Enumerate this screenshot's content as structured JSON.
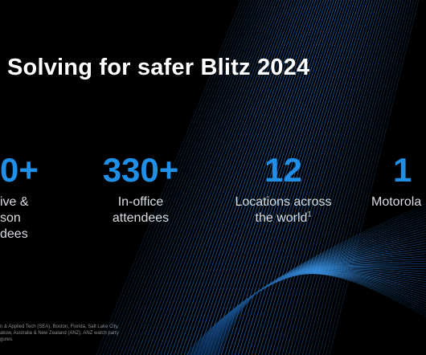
{
  "slide": {
    "title": "Solving for safer Blitz 2024",
    "stats": [
      {
        "value": "0+",
        "label_lines": [
          "ive &",
          "son",
          "dees"
        ]
      },
      {
        "value": "330+",
        "label_lines": [
          "In-office",
          "attendees"
        ]
      },
      {
        "value": "12",
        "label_lines": [
          "Locations across",
          "the world"
        ],
        "footnote_marker": "1"
      },
      {
        "value": "1",
        "label_lines": [
          "Motorola"
        ]
      }
    ],
    "footnote_lines": [
      "n & Applied Tech (SEA), Boston, Florida, Salt Lake City,",
      "akow, Australia & New Zealand (ANZ). ANZ watch party",
      "gures."
    ]
  },
  "colors": {
    "background": "#000000",
    "accent": "#1f8fe8",
    "label": "#d9dde3"
  }
}
